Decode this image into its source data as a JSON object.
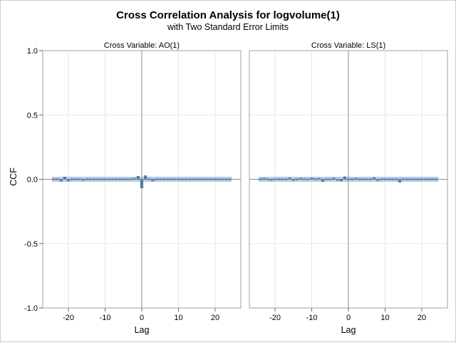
{
  "chart_data": {
    "type": "bar",
    "title": "Cross Correlation Analysis for logvolume(1)",
    "subtitle": "with Two Standard Error Limits",
    "ylabel": "CCF",
    "xlabel": "Lag",
    "ylim": [
      -1.0,
      1.0
    ],
    "xlim": [
      -27,
      27
    ],
    "yticks": [
      "1.0",
      "0.5",
      "0.0",
      "-0.5",
      "-1.0"
    ],
    "xticks": [
      "-20",
      "-10",
      "0",
      "10",
      "20"
    ],
    "grid": true,
    "panels": [
      {
        "title": "Cross Variable: AO(1)",
        "std_err_limit": 0.02,
        "lags": [
          -24,
          -23,
          -22,
          -21,
          -20,
          -19,
          -18,
          -17,
          -16,
          -15,
          -14,
          -13,
          -12,
          -11,
          -10,
          -9,
          -8,
          -7,
          -6,
          -5,
          -4,
          -3,
          -2,
          -1,
          0,
          1,
          2,
          3,
          4,
          5,
          6,
          7,
          8,
          9,
          10,
          11,
          12,
          13,
          14,
          15,
          16,
          17,
          18,
          19,
          20,
          21,
          22,
          23,
          24
        ],
        "values": [
          0.005,
          0.0,
          -0.018,
          0.02,
          -0.015,
          0.004,
          0.002,
          0.0,
          -0.01,
          -0.008,
          0.003,
          0.002,
          0.0,
          0.005,
          0.008,
          0.0,
          -0.003,
          0.005,
          0.0,
          0.004,
          0.008,
          0.006,
          0.01,
          0.025,
          -0.07,
          0.03,
          -0.008,
          -0.015,
          0.008,
          0.0,
          -0.005,
          0.002,
          0.0,
          0.004,
          0.005,
          -0.004,
          0.0,
          0.003,
          -0.002,
          0.0,
          0.004,
          0.002,
          0.0,
          0.0,
          -0.004,
          0.002,
          0.003,
          -0.006,
          0.0
        ]
      },
      {
        "title": "Cross Variable: LS(1)",
        "std_err_limit": 0.02,
        "lags": [
          -24,
          -23,
          -22,
          -21,
          -20,
          -19,
          -18,
          -17,
          -16,
          -15,
          -14,
          -13,
          -12,
          -11,
          -10,
          -9,
          -8,
          -7,
          -6,
          -5,
          -4,
          -3,
          -2,
          -1,
          0,
          1,
          2,
          3,
          4,
          5,
          6,
          7,
          8,
          9,
          10,
          11,
          12,
          13,
          14,
          15,
          16,
          17,
          18,
          19,
          20,
          21,
          22,
          23,
          24
        ],
        "values": [
          -0.005,
          0.01,
          0.008,
          -0.01,
          0.0,
          -0.005,
          0.006,
          -0.004,
          0.012,
          -0.01,
          -0.003,
          0.01,
          -0.006,
          0.004,
          0.012,
          -0.008,
          0.01,
          -0.02,
          0.002,
          -0.006,
          0.012,
          -0.01,
          -0.016,
          0.022,
          0.0,
          -0.004,
          0.01,
          -0.005,
          0.0,
          0.006,
          -0.003,
          0.015,
          -0.012,
          0.0,
          -0.008,
          0.005,
          0.002,
          0.008,
          -0.025,
          0.008,
          0.004,
          0.0,
          -0.004,
          0.002,
          0.004,
          -0.006,
          -0.004,
          0.005,
          -0.003
        ]
      }
    ]
  }
}
